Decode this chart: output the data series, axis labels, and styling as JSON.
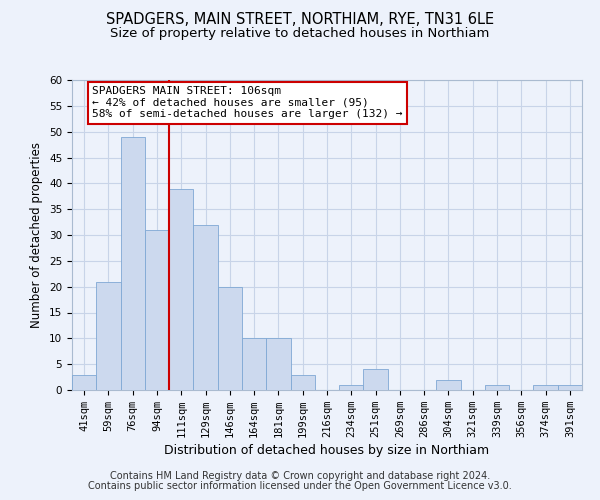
{
  "title": "SPADGERS, MAIN STREET, NORTHIAM, RYE, TN31 6LE",
  "subtitle": "Size of property relative to detached houses in Northiam",
  "xlabel": "Distribution of detached houses by size in Northiam",
  "ylabel": "Number of detached properties",
  "bin_labels": [
    "41sqm",
    "59sqm",
    "76sqm",
    "94sqm",
    "111sqm",
    "129sqm",
    "146sqm",
    "164sqm",
    "181sqm",
    "199sqm",
    "216sqm",
    "234sqm",
    "251sqm",
    "269sqm",
    "286sqm",
    "304sqm",
    "321sqm",
    "339sqm",
    "356sqm",
    "374sqm",
    "391sqm"
  ],
  "bar_heights": [
    3,
    21,
    49,
    31,
    39,
    32,
    20,
    10,
    10,
    3,
    0,
    1,
    4,
    0,
    0,
    2,
    0,
    1,
    0,
    1,
    1
  ],
  "bar_color": "#ccd9ee",
  "bar_edge_color": "#7fa8d4",
  "vline_x_index": 4,
  "vline_color": "#cc0000",
  "annotation_line1": "SPADGERS MAIN STREET: 106sqm",
  "annotation_line2": "← 42% of detached houses are smaller (95)",
  "annotation_line3": "58% of semi-detached houses are larger (132) →",
  "annotation_box_color": "#ffffff",
  "annotation_box_edge": "#cc0000",
  "ylim": [
    0,
    60
  ],
  "yticks": [
    0,
    5,
    10,
    15,
    20,
    25,
    30,
    35,
    40,
    45,
    50,
    55,
    60
  ],
  "grid_color": "#c8d4e8",
  "footer1": "Contains HM Land Registry data © Crown copyright and database right 2024.",
  "footer2": "Contains public sector information licensed under the Open Government Licence v3.0.",
  "bg_color": "#edf2fb",
  "plot_bg_color": "#edf2fb",
  "title_fontsize": 10.5,
  "subtitle_fontsize": 9.5,
  "xlabel_fontsize": 9,
  "ylabel_fontsize": 8.5,
  "tick_fontsize": 7.5,
  "annotation_fontsize": 8,
  "footer_fontsize": 7
}
